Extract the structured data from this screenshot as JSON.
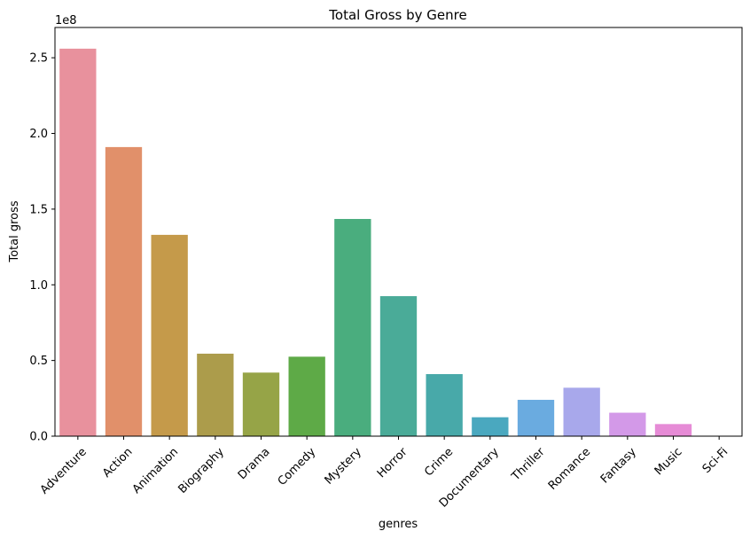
{
  "chart_data": {
    "type": "bar",
    "title": "Total Gross by Genre",
    "xlabel": "genres",
    "ylabel": "Total gross",
    "y_offset_label": "1e8",
    "y_scale": 100000000,
    "ylim": [
      0,
      270000000
    ],
    "yticks": [
      0,
      50000000,
      100000000,
      150000000,
      200000000,
      250000000
    ],
    "ytick_labels": [
      "0.0",
      "0.5",
      "1.0",
      "1.5",
      "2.0",
      "2.5"
    ],
    "grid": false,
    "categories": [
      "Adventure",
      "Action",
      "Animation",
      "Biography",
      "Drama",
      "Comedy",
      "Mystery",
      "Horror",
      "Crime",
      "Documentary",
      "Thriller",
      "Romance",
      "Fantasy",
      "Music",
      "Sci-Fi"
    ],
    "values": [
      256000000,
      191000000,
      133000000,
      54500000,
      42000000,
      52500000,
      143500000,
      92500000,
      41000000,
      12500000,
      24000000,
      32000000,
      15500000,
      8000000,
      0
    ],
    "colors": [
      "#e8919d",
      "#e1906a",
      "#c59a4a",
      "#ac9c4b",
      "#96a447",
      "#5eaa47",
      "#4aad7e",
      "#4aab98",
      "#48a9a9",
      "#4aa8bf",
      "#6aabe0",
      "#a8a8eb",
      "#d399e8",
      "#e68bd6",
      "#ea91c2"
    ]
  }
}
